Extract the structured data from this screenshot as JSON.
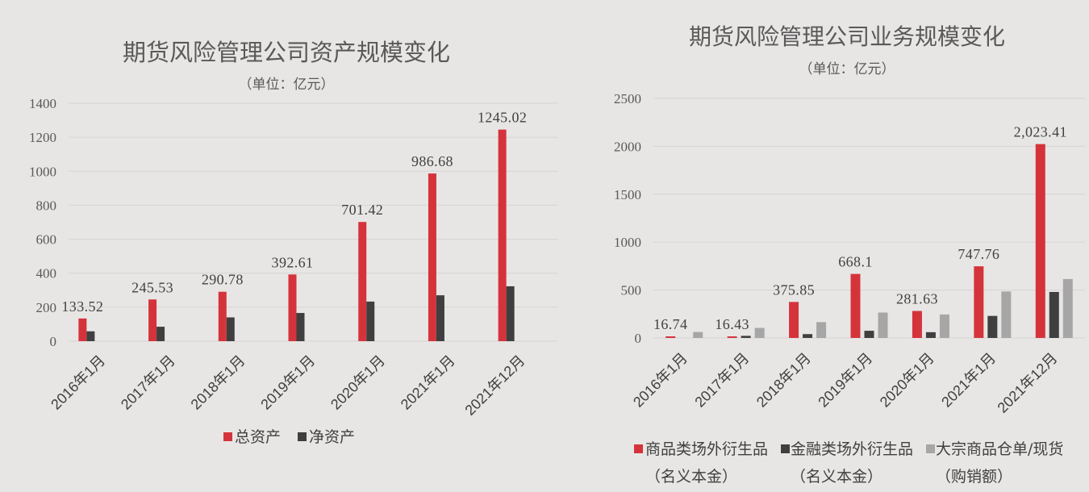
{
  "chart_data": [
    {
      "type": "bar",
      "title": "期货风险管理公司资产规模变化",
      "subtitle": "（单位：亿元）",
      "categories": [
        "2016年1月",
        "2017年1月",
        "2018年1月",
        "2019年1月",
        "2020年1月",
        "2021年1月",
        "2021年12月"
      ],
      "ylim": [
        0,
        1400
      ],
      "yticks": [
        0,
        200,
        400,
        600,
        800,
        1000,
        1200,
        1400
      ],
      "grid": true,
      "legend": "bottom",
      "series": [
        {
          "name": "总资产",
          "color": "#d5333b",
          "values": [
            133.52,
            245.53,
            290.78,
            392.61,
            701.42,
            986.68,
            1245.02
          ],
          "labels": [
            "133.52",
            "245.53",
            "290.78",
            "392.61",
            "701.42",
            "986.68",
            "1245.02"
          ]
        },
        {
          "name": "净资产",
          "color": "#3f3f3f",
          "values": [
            58,
            85,
            140,
            166,
            233,
            270,
            323
          ]
        }
      ]
    },
    {
      "type": "bar",
      "title": "期货风险管理公司业务规模变化",
      "subtitle": "（单位：亿元）",
      "categories": [
        "2016年1月",
        "2017年1月",
        "2018年1月",
        "2019年1月",
        "2020年1月",
        "2021年1月",
        "2021年12月"
      ],
      "ylim": [
        0,
        2500
      ],
      "yticks": [
        0,
        500,
        1000,
        1500,
        2000,
        2500
      ],
      "grid": true,
      "legend": "bottom",
      "series": [
        {
          "name": "商品类场外衍生品\n（名义本金）",
          "color": "#d5333b",
          "values": [
            16.74,
            16.43,
            375.85,
            668.1,
            281.63,
            747.76,
            2023.41
          ],
          "labels": [
            "16.74",
            "16.43",
            "375.85",
            "668.1",
            "281.63",
            "747.76",
            "2,023.41"
          ]
        },
        {
          "name": "金融类场外衍生品\n（名义本金）",
          "color": "#3f3f3f",
          "values": [
            0,
            22,
            40,
            75,
            60,
            230,
            480
          ]
        },
        {
          "name": "大宗商品仓单/现货\n（购销额）",
          "color": "#a6a6a6",
          "values": [
            62,
            105,
            165,
            265,
            245,
            485,
            615
          ]
        }
      ]
    }
  ]
}
